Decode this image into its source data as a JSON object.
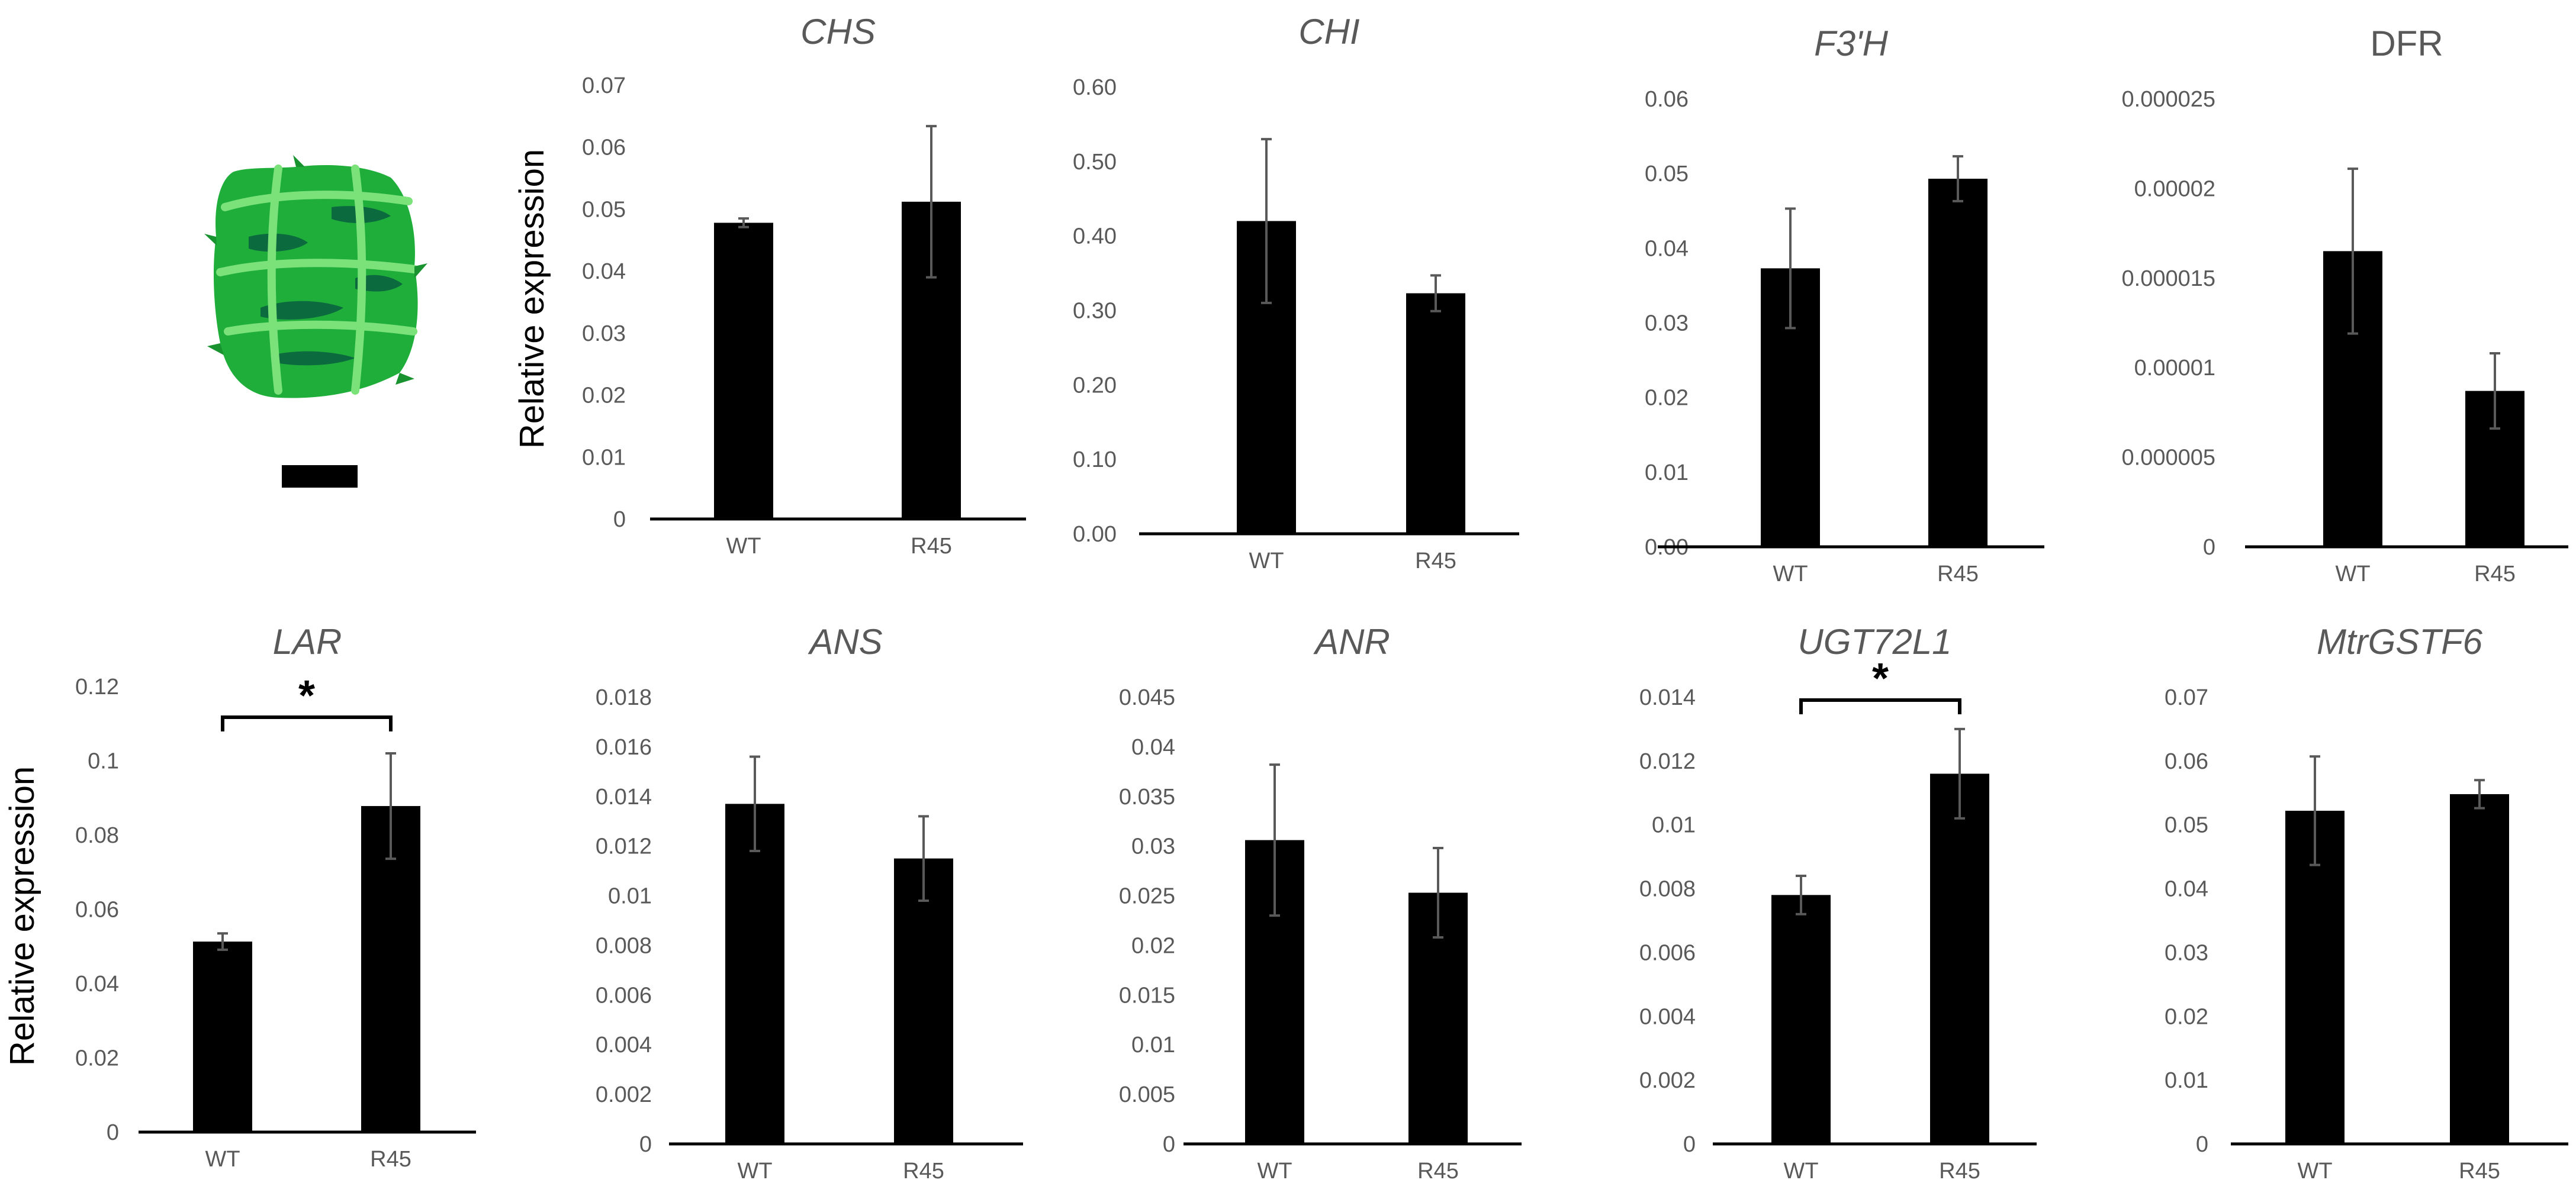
{
  "figure": {
    "ylabel_top": "Relative expression",
    "ylabel_bottom": "Relative expression",
    "photo": "seed-pod-photo",
    "colors": {
      "bar": "#000000",
      "text": "#595959",
      "errorbar": "#595959",
      "plant": "#1fae3a"
    }
  },
  "chart_data": [
    {
      "type": "bar",
      "title": "CHS",
      "italic": true,
      "categories": [
        "WT",
        "R45"
      ],
      "values": [
        0.0478,
        0.0512
      ],
      "errors": [
        0.0007,
        0.0122
      ],
      "ylim": [
        0,
        0.07
      ],
      "ticks": [
        0,
        0.01,
        0.02,
        0.03,
        0.04,
        0.05,
        0.06,
        0.07
      ],
      "tick_labels": [
        "0",
        "0.01",
        "0.02",
        "0.03",
        "0.04",
        "0.05",
        "0.06",
        "0.07"
      ],
      "ylabel": "Relative expression",
      "significance": null
    },
    {
      "type": "bar",
      "title": "CHI",
      "italic": true,
      "categories": [
        "WT",
        "R45"
      ],
      "values": [
        0.42,
        0.323
      ],
      "errors": [
        0.11,
        0.024
      ],
      "ylim": [
        0,
        0.6
      ],
      "ticks": [
        0,
        0.1,
        0.2,
        0.3,
        0.4,
        0.5,
        0.6
      ],
      "tick_labels": [
        "0.00",
        "0.10",
        "0.20",
        "0.30",
        "0.40",
        "0.50",
        "0.60"
      ],
      "ylabel": "",
      "significance": null
    },
    {
      "type": "bar",
      "title": "F3'H",
      "italic": true,
      "categories": [
        "WT",
        "R45"
      ],
      "values": [
        0.0373,
        0.0493
      ],
      "errors": [
        0.008,
        0.003
      ],
      "ylim": [
        0,
        0.06
      ],
      "ticks": [
        0,
        0.01,
        0.02,
        0.03,
        0.04,
        0.05,
        0.06
      ],
      "tick_labels": [
        "0.00",
        "0.01",
        "0.02",
        "0.03",
        "0.04",
        "0.05",
        "0.06"
      ],
      "ylabel": "",
      "significance": null
    },
    {
      "type": "bar",
      "title": "DFR",
      "italic": false,
      "categories": [
        "WT",
        "R45"
      ],
      "values": [
        1.65e-05,
        8.7e-06
      ],
      "errors": [
        4.6e-06,
        2.1e-06
      ],
      "ylim": [
        0,
        2.5e-05
      ],
      "ticks": [
        0,
        5e-06,
        1e-05,
        1.5e-05,
        2e-05,
        2.5e-05
      ],
      "tick_labels": [
        "0",
        "0.000005",
        "0.00001",
        "0.000015",
        "0.00002",
        "0.000025"
      ],
      "ylabel": "",
      "significance": null
    },
    {
      "type": "bar",
      "title": "LAR",
      "italic": true,
      "categories": [
        "WT",
        "R45"
      ],
      "values": [
        0.0513,
        0.0878
      ],
      "errors": [
        0.0022,
        0.0142
      ],
      "ylim": [
        0,
        0.12
      ],
      "ticks": [
        0,
        0.02,
        0.04,
        0.06,
        0.08,
        0.1,
        0.12
      ],
      "tick_labels": [
        "0",
        "0.02",
        "0.04",
        "0.06",
        "0.08",
        "0.1",
        "0.12"
      ],
      "ylabel": "Relative expression",
      "significance": "*"
    },
    {
      "type": "bar",
      "title": "ANS",
      "italic": true,
      "categories": [
        "WT",
        "R45"
      ],
      "values": [
        0.0137,
        0.0115
      ],
      "errors": [
        0.0019,
        0.0017
      ],
      "ylim": [
        0,
        0.018
      ],
      "ticks": [
        0,
        0.002,
        0.004,
        0.006,
        0.008,
        0.01,
        0.012,
        0.014,
        0.016,
        0.018
      ],
      "tick_labels": [
        "0",
        "0.002",
        "0.004",
        "0.006",
        "0.008",
        "0.01",
        "0.012",
        "0.014",
        "0.016",
        "0.018"
      ],
      "ylabel": "",
      "significance": null
    },
    {
      "type": "bar",
      "title": "ANR",
      "italic": true,
      "categories": [
        "WT",
        "R45"
      ],
      "values": [
        0.0306,
        0.0253
      ],
      "errors": [
        0.0076,
        0.0045
      ],
      "ylim": [
        0,
        0.045
      ],
      "ticks": [
        0,
        0.005,
        0.01,
        0.015,
        0.02,
        0.025,
        0.03,
        0.035,
        0.04,
        0.045
      ],
      "tick_labels": [
        "0",
        "0.005",
        "0.01",
        "0.015",
        "0.02",
        "0.025",
        "0.03",
        "0.035",
        "0.04",
        "0.045"
      ],
      "ylabel": "",
      "significance": null
    },
    {
      "type": "bar",
      "title": "UGT72L1",
      "italic": true,
      "categories": [
        "WT",
        "R45"
      ],
      "values": [
        0.0078,
        0.0116
      ],
      "errors": [
        0.0006,
        0.0014
      ],
      "ylim": [
        0,
        0.014
      ],
      "ticks": [
        0,
        0.002,
        0.004,
        0.006,
        0.008,
        0.01,
        0.012,
        0.014
      ],
      "tick_labels": [
        "0",
        "0.002",
        "0.004",
        "0.006",
        "0.008",
        "0.01",
        "0.012",
        "0.014"
      ],
      "ylabel": "",
      "significance": "*"
    },
    {
      "type": "bar",
      "title": "MtrGSTF6",
      "italic": true,
      "categories": [
        "WT",
        "R45"
      ],
      "values": [
        0.0522,
        0.0548
      ],
      "errors": [
        0.0085,
        0.0022
      ],
      "ylim": [
        0,
        0.07
      ],
      "ticks": [
        0,
        0.01,
        0.02,
        0.03,
        0.04,
        0.05,
        0.06,
        0.07
      ],
      "tick_labels": [
        "0",
        "0.01",
        "0.02",
        "0.03",
        "0.04",
        "0.05",
        "0.06",
        "0.07"
      ],
      "ylabel": "",
      "significance": null
    }
  ]
}
